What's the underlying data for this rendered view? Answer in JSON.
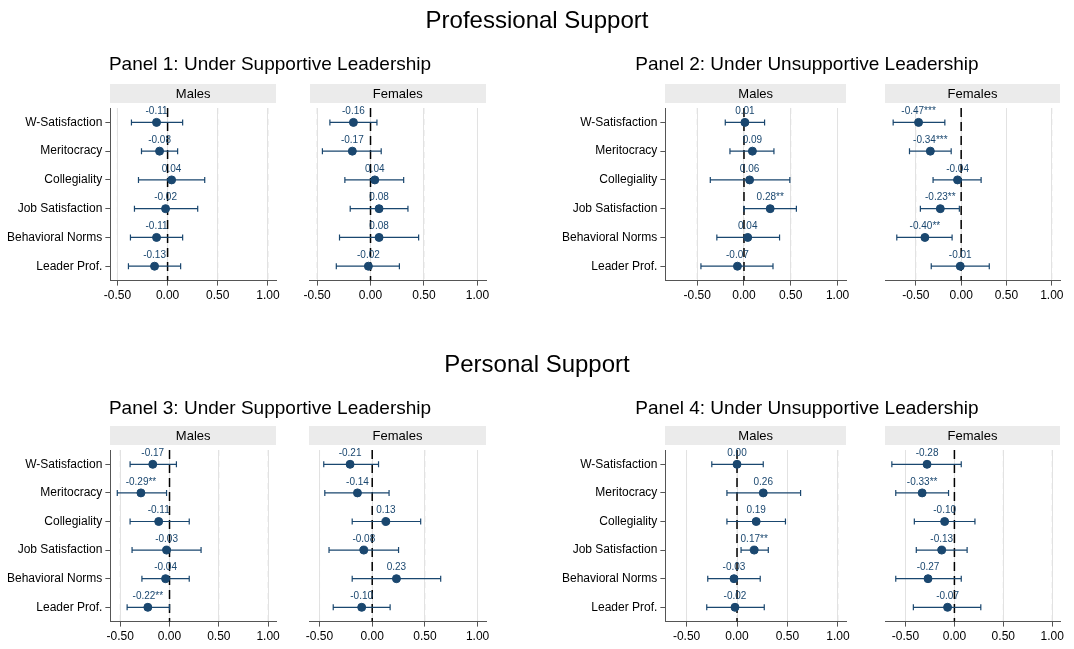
{
  "chart_data": [
    {
      "type": "other",
      "title": "Professional Support"
    },
    {
      "type": "other",
      "title": "Panel 1: Under Supportive Leadership"
    },
    {
      "type": "other",
      "title": "Panel 2: Under Unsupportive Leadership"
    },
    {
      "type": "scatter",
      "title": "Males",
      "orientation": "horizontal",
      "categories": [
        "W-Satisfaction",
        "Meritocracy",
        "Collegiality",
        "Job Satisfaction",
        "Behavioral Norms",
        "Leader Prof."
      ],
      "color": "#1a476f",
      "marker": "circle",
      "grid": "x",
      "values": [
        -0.11,
        -0.08,
        0.04,
        -0.02,
        -0.11,
        -0.13
      ],
      "errors": [
        [
          -0.36,
          0.15
        ],
        [
          -0.26,
          0.1
        ],
        [
          -0.29,
          0.37
        ],
        [
          -0.33,
          0.3
        ],
        [
          -0.37,
          0.15
        ],
        [
          -0.39,
          0.13
        ]
      ],
      "value_labels": [
        "-0.11",
        "-0.08",
        "0.04",
        "-0.02",
        "-0.11",
        "-0.13"
      ],
      "xlim": [
        -0.57,
        1.08
      ],
      "xticks": [
        {
          "value": -0.5,
          "label": "-0.50"
        },
        {
          "value": 0,
          "label": "0.00"
        },
        {
          "value": 0.5,
          "label": "0.50"
        },
        {
          "value": 1,
          "label": "1.00"
        }
      ],
      "ref_lines": [
        {
          "axis": "x",
          "value": 0,
          "color": "#000000",
          "line_style": "dashed"
        }
      ]
    },
    {
      "type": "scatter",
      "title": "Females",
      "orientation": "horizontal",
      "categories": [
        null,
        null,
        null,
        null,
        null,
        null
      ],
      "color": "#1a476f",
      "marker": "circle",
      "grid": "x",
      "tick_labels": "x",
      "values": [
        -0.16,
        -0.17,
        0.04,
        0.08,
        0.08,
        -0.02
      ],
      "errors": [
        [
          -0.38,
          0.06
        ],
        [
          -0.45,
          0.1
        ],
        [
          -0.24,
          0.31
        ],
        [
          -0.19,
          0.35
        ],
        [
          -0.29,
          0.45
        ],
        [
          -0.32,
          0.27
        ]
      ],
      "value_labels": [
        "-0.16",
        "-0.17",
        "0.04",
        "0.08",
        "0.08",
        "-0.02"
      ],
      "xlim": [
        -0.57,
        1.08
      ],
      "xticks": [
        {
          "value": -0.5,
          "label": "-0.50"
        },
        {
          "value": 0,
          "label": "0.00"
        },
        {
          "value": 0.5,
          "label": "0.50"
        },
        {
          "value": 1,
          "label": "1.00"
        }
      ],
      "ref_lines": [
        {
          "axis": "x",
          "value": 0,
          "color": "#000000",
          "line_style": "dashed"
        }
      ]
    },
    {
      "type": "scatter",
      "title": "Males",
      "orientation": "horizontal",
      "categories": [
        "W-Satisfaction",
        "Meritocracy",
        "Collegiality",
        "Job Satisfaction",
        "Behavioral Norms",
        "Leader Prof."
      ],
      "color": "#1a476f",
      "marker": "circle",
      "grid": "x",
      "values": [
        0.01,
        0.09,
        0.06,
        0.28,
        0.04,
        -0.07
      ],
      "errors": [
        [
          -0.2,
          0.22
        ],
        [
          -0.15,
          0.32
        ],
        [
          -0.36,
          0.49
        ],
        [
          0.0,
          0.56
        ],
        [
          -0.29,
          0.38
        ],
        [
          -0.46,
          0.31
        ]
      ],
      "value_labels": [
        "0.01",
        "0.09",
        "0.06",
        "0.28**",
        "0.04",
        "-0.07"
      ],
      "xlim": [
        -0.84,
        1.09
      ],
      "xticks": [
        {
          "value": -0.5,
          "label": "-0.50"
        },
        {
          "value": 0,
          "label": "0.00"
        },
        {
          "value": 0.5,
          "label": "0.50"
        },
        {
          "value": 1,
          "label": "1.00"
        }
      ],
      "ref_lines": [
        {
          "axis": "x",
          "value": 0,
          "color": "#000000",
          "line_style": "dashed"
        }
      ]
    },
    {
      "type": "scatter",
      "title": "Females",
      "orientation": "horizontal",
      "categories": [
        null,
        null,
        null,
        null,
        null,
        null
      ],
      "color": "#1a476f",
      "marker": "circle",
      "grid": "x",
      "tick_labels": "x",
      "values": [
        -0.47,
        -0.34,
        -0.04,
        -0.23,
        -0.4,
        -0.01
      ],
      "errors": [
        [
          -0.75,
          -0.18
        ],
        [
          -0.57,
          -0.11
        ],
        [
          -0.31,
          0.22
        ],
        [
          -0.45,
          -0.02
        ],
        [
          -0.71,
          -0.1
        ],
        [
          -0.33,
          0.31
        ]
      ],
      "value_labels": [
        "-0.47***",
        "-0.34***",
        "-0.04",
        "-0.23**",
        "-0.40**",
        "-0.01"
      ],
      "xlim": [
        -0.84,
        1.09
      ],
      "xticks": [
        {
          "value": -0.5,
          "label": "-0.50"
        },
        {
          "value": 0,
          "label": "0.00"
        },
        {
          "value": 0.5,
          "label": "0.50"
        },
        {
          "value": 1,
          "label": "1.00"
        }
      ],
      "ref_lines": [
        {
          "axis": "x",
          "value": 0,
          "color": "#000000",
          "line_style": "dashed"
        }
      ]
    },
    {
      "type": "other",
      "title": "Personal Support"
    },
    {
      "type": "other",
      "title": "Panel 3: Under Supportive Leadership"
    },
    {
      "type": "other",
      "title": "Panel 4: Under Unsupportive Leadership"
    },
    {
      "type": "scatter",
      "title": "Males",
      "orientation": "horizontal",
      "categories": [
        "W-Satisfaction",
        "Meritocracy",
        "Collegiality",
        "Job Satisfaction",
        "Behavioral Norms",
        "Leader Prof."
      ],
      "color": "#1a476f",
      "marker": "circle",
      "grid": "x",
      "values": [
        -0.17,
        -0.29,
        -0.11,
        -0.03,
        -0.04,
        -0.22
      ],
      "errors": [
        [
          -0.4,
          0.07
        ],
        [
          -0.53,
          -0.03
        ],
        [
          -0.4,
          0.2
        ],
        [
          -0.38,
          0.32
        ],
        [
          -0.28,
          0.2
        ],
        [
          -0.43,
          0.0
        ]
      ],
      "value_labels": [
        "-0.17",
        "-0.29**",
        "-0.11",
        "-0.03",
        "-0.04",
        "-0.22**"
      ],
      "xlim": [
        -0.6,
        1.08
      ],
      "xticks": [
        {
          "value": -0.5,
          "label": "-0.50"
        },
        {
          "value": 0,
          "label": "0.00"
        },
        {
          "value": 0.5,
          "label": "0.50"
        },
        {
          "value": 1,
          "label": "1.00"
        }
      ],
      "ref_lines": [
        {
          "axis": "x",
          "value": 0,
          "color": "#000000",
          "line_style": "dashed"
        }
      ]
    },
    {
      "type": "scatter",
      "title": "Females",
      "orientation": "horizontal",
      "categories": [
        null,
        null,
        null,
        null,
        null,
        null
      ],
      "color": "#1a476f",
      "marker": "circle",
      "grid": "x",
      "tick_labels": "x",
      "values": [
        -0.21,
        -0.14,
        0.13,
        -0.08,
        0.23,
        -0.1
      ],
      "errors": [
        [
          -0.46,
          0.06
        ],
        [
          -0.45,
          0.16
        ],
        [
          -0.19,
          0.46
        ],
        [
          -0.41,
          0.25
        ],
        [
          -0.19,
          0.65
        ],
        [
          -0.37,
          0.17
        ]
      ],
      "value_labels": [
        "-0.21",
        "-0.14",
        "0.13",
        "-0.08",
        "0.23",
        "-0.10"
      ],
      "xlim": [
        -0.6,
        1.08
      ],
      "xticks": [
        {
          "value": -0.5,
          "label": "-0.50"
        },
        {
          "value": 0,
          "label": "0.00"
        },
        {
          "value": 0.5,
          "label": "0.50"
        },
        {
          "value": 1,
          "label": "1.00"
        }
      ],
      "ref_lines": [
        {
          "axis": "x",
          "value": 0,
          "color": "#000000",
          "line_style": "dashed"
        }
      ]
    },
    {
      "type": "scatter",
      "title": "Males",
      "orientation": "horizontal",
      "categories": [
        "W-Satisfaction",
        "Meritocracy",
        "Collegiality",
        "Job Satisfaction",
        "Behavioral Norms",
        "Leader Prof."
      ],
      "color": "#1a476f",
      "marker": "circle",
      "grid": "x",
      "values": [
        0.0,
        0.26,
        0.19,
        0.17,
        -0.03,
        -0.02
      ],
      "errors": [
        [
          -0.25,
          0.26
        ],
        [
          -0.1,
          0.63
        ],
        [
          -0.1,
          0.48
        ],
        [
          0.04,
          0.31
        ],
        [
          -0.29,
          0.23
        ],
        [
          -0.3,
          0.27
        ]
      ],
      "value_labels": [
        "0.00",
        "0.26",
        "0.19",
        "0.17**",
        "-0.03",
        "-0.02"
      ],
      "xlim": [
        -0.71,
        1.08
      ],
      "xticks": [
        {
          "value": -0.5,
          "label": "-0.50"
        },
        {
          "value": 0,
          "label": "0.00"
        },
        {
          "value": 0.5,
          "label": "0.50"
        },
        {
          "value": 1,
          "label": "1.00"
        }
      ],
      "ref_lines": [
        {
          "axis": "x",
          "value": 0,
          "color": "#000000",
          "line_style": "dashed"
        }
      ]
    },
    {
      "type": "scatter",
      "title": "Females",
      "orientation": "horizontal",
      "categories": [
        null,
        null,
        null,
        null,
        null,
        null
      ],
      "color": "#1a476f",
      "marker": "circle",
      "grid": "x",
      "tick_labels": "x",
      "values": [
        -0.28,
        -0.33,
        -0.1,
        -0.13,
        -0.27,
        -0.07
      ],
      "errors": [
        [
          -0.64,
          0.07
        ],
        [
          -0.6,
          -0.06
        ],
        [
          -0.41,
          0.21
        ],
        [
          -0.39,
          0.13
        ],
        [
          -0.6,
          0.07
        ],
        [
          -0.42,
          0.27
        ]
      ],
      "value_labels": [
        "-0.28",
        "-0.33**",
        "-0.10",
        "-0.13",
        "-0.27",
        "-0.07"
      ],
      "xlim": [
        -0.71,
        1.08
      ],
      "xticks": [
        {
          "value": -0.5,
          "label": "-0.50"
        },
        {
          "value": 0,
          "label": "0.00"
        },
        {
          "value": 0.5,
          "label": "0.50"
        },
        {
          "value": 1,
          "label": "1.00"
        }
      ],
      "ref_lines": [
        {
          "axis": "x",
          "value": 0,
          "color": "#000000",
          "line_style": "dashed"
        }
      ]
    }
  ]
}
